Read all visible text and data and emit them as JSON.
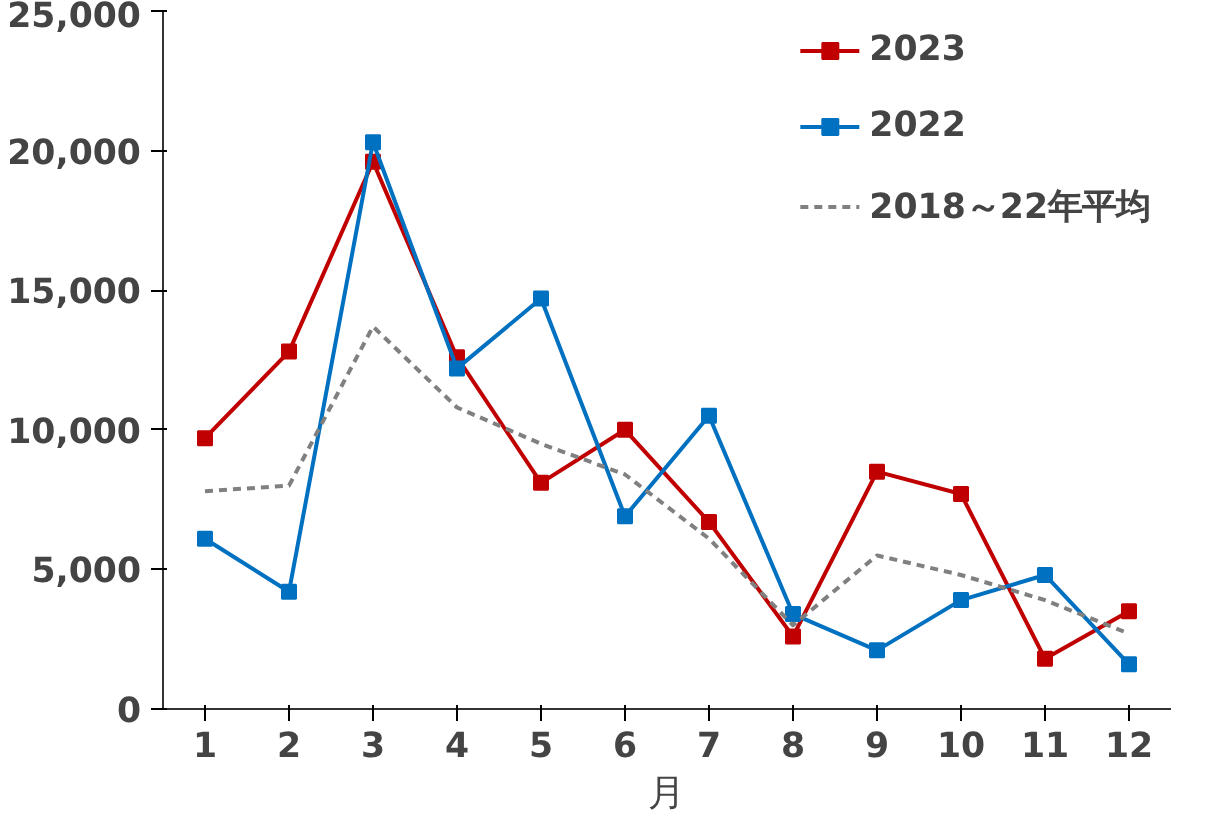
{
  "chart_data": {
    "type": "line",
    "xlabel": "月",
    "x": [
      1,
      2,
      3,
      4,
      5,
      6,
      7,
      8,
      9,
      10,
      11,
      12
    ],
    "xlim": [
      0.5,
      12.5
    ],
    "xticks": [
      1,
      2,
      3,
      4,
      5,
      6,
      7,
      8,
      9,
      10,
      11,
      12
    ],
    "ylim": [
      0,
      25000
    ],
    "yticks": [
      {
        "value": 0,
        "label": "0"
      },
      {
        "value": 5000,
        "label": "5,000"
      },
      {
        "value": 10000,
        "label": "10,000"
      },
      {
        "value": 15000,
        "label": "15,000"
      },
      {
        "value": 20000,
        "label": "20,000"
      },
      {
        "value": 25000,
        "label": "25,000"
      }
    ],
    "grid": false,
    "legend": "top right",
    "series": [
      {
        "name": "2023",
        "color": "#c00000",
        "marker": "square",
        "line_style": "solid",
        "values": [
          9700,
          12800,
          19600,
          12600,
          8100,
          10000,
          6700,
          2600,
          8500,
          7700,
          1800,
          3500
        ]
      },
      {
        "name": "2022",
        "color": "#0070c0",
        "marker": "square",
        "line_style": "solid",
        "values": [
          6100,
          4200,
          20300,
          12200,
          14700,
          6900,
          10500,
          3400,
          2100,
          3900,
          4800,
          1600
        ]
      },
      {
        "name": "2018～22年平均",
        "color": "#808080",
        "marker": "none",
        "line_style": "dashed",
        "values": [
          7800,
          8000,
          13700,
          10800,
          9500,
          8400,
          6100,
          3000,
          5500,
          4800,
          3900,
          2700
        ]
      }
    ]
  }
}
